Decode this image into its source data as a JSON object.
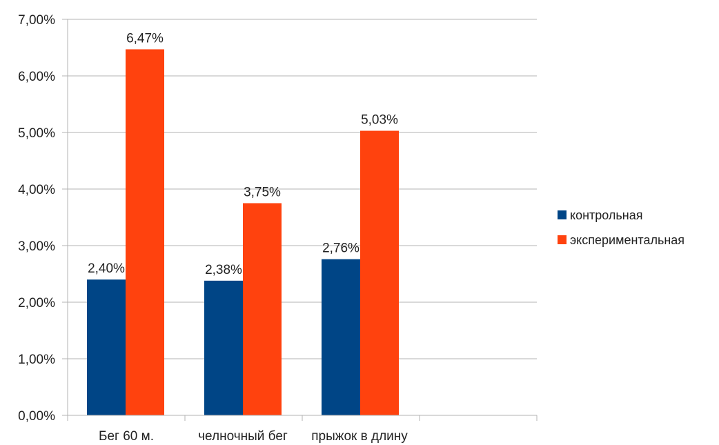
{
  "chart_data": {
    "type": "bar",
    "categories": [
      "Бег 60 м.",
      "челночный бег",
      "прыжок в длину"
    ],
    "series": [
      {
        "name": "контрольная",
        "values": [
          2.4,
          2.38,
          2.76
        ],
        "labels": [
          "2,40%",
          "2,38%",
          "2,76%"
        ],
        "color": "#004586"
      },
      {
        "name": "экспериментальная",
        "values": [
          6.47,
          3.75,
          5.03
        ],
        "labels": [
          "6,47%",
          "3,75%",
          "5,03%"
        ],
        "color": "#ff420e"
      }
    ],
    "title": "",
    "xlabel": "",
    "ylabel": "",
    "ylim": [
      0,
      7
    ],
    "yticks": [
      0,
      1,
      2,
      3,
      4,
      5,
      6,
      7
    ],
    "ytick_labels": [
      "0,00%",
      "1,00%",
      "2,00%",
      "3,00%",
      "4,00%",
      "5,00%",
      "6,00%",
      "7,00%"
    ],
    "grid": "horizontal",
    "legend_position": "right",
    "gridline_color": "#b3b3b3",
    "axis_color": "#b3b3b3"
  }
}
